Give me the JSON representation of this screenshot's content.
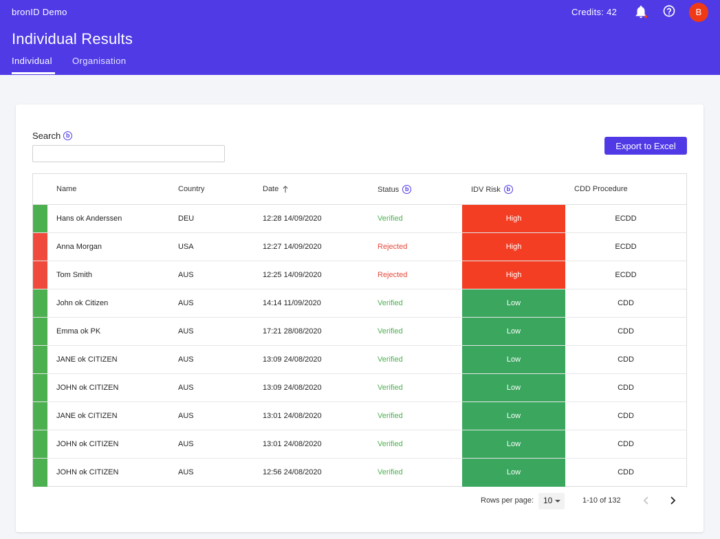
{
  "app": {
    "title": "bronID Demo",
    "credits": "Credits: 42",
    "avatar_initial": "B"
  },
  "header": {
    "page_title": "Individual Results",
    "tabs": [
      {
        "label": "Individual",
        "active": true
      },
      {
        "label": "Organisation",
        "active": false
      }
    ]
  },
  "search": {
    "label": "Search",
    "value": "",
    "placeholder": ""
  },
  "export_label": "Export to Excel",
  "table": {
    "columns": [
      "Name",
      "Country",
      "Date",
      "Status",
      "IDV Risk",
      "CDD Procedure"
    ],
    "rows": [
      {
        "name": "Hans ok Anderssen",
        "country": "DEU",
        "date": "12:28 14/09/2020",
        "status": "Verified",
        "risk": "High",
        "cdd": "ECDD",
        "indicator": "#4caf50"
      },
      {
        "name": "Anna Morgan",
        "country": "USA",
        "date": "12:27 14/09/2020",
        "status": "Rejected",
        "risk": "High",
        "cdd": "ECDD",
        "indicator": "#ef4a3c"
      },
      {
        "name": "Tom Smith",
        "country": "AUS",
        "date": "12:25 14/09/2020",
        "status": "Rejected",
        "risk": "High",
        "cdd": "ECDD",
        "indicator": "#ef4a3c"
      },
      {
        "name": "John ok Citizen",
        "country": "AUS",
        "date": "14:14 11/09/2020",
        "status": "Verified",
        "risk": "Low",
        "cdd": "CDD",
        "indicator": "#4caf50"
      },
      {
        "name": "Emma ok PK",
        "country": "AUS",
        "date": "17:21 28/08/2020",
        "status": "Verified",
        "risk": "Low",
        "cdd": "CDD",
        "indicator": "#4caf50"
      },
      {
        "name": "JANE ok CITIZEN",
        "country": "AUS",
        "date": "13:09 24/08/2020",
        "status": "Verified",
        "risk": "Low",
        "cdd": "CDD",
        "indicator": "#4caf50"
      },
      {
        "name": "JOHN ok CITIZEN",
        "country": "AUS",
        "date": "13:09 24/08/2020",
        "status": "Verified",
        "risk": "Low",
        "cdd": "CDD",
        "indicator": "#4caf50"
      },
      {
        "name": "JANE ok CITIZEN",
        "country": "AUS",
        "date": "13:01 24/08/2020",
        "status": "Verified",
        "risk": "Low",
        "cdd": "CDD",
        "indicator": "#4caf50"
      },
      {
        "name": "JOHN ok CITIZEN",
        "country": "AUS",
        "date": "13:01 24/08/2020",
        "status": "Verified",
        "risk": "Low",
        "cdd": "CDD",
        "indicator": "#4caf50"
      },
      {
        "name": "JOHN ok CITIZEN",
        "country": "AUS",
        "date": "12:56 24/08/2020",
        "status": "Verified",
        "risk": "Low",
        "cdd": "CDD",
        "indicator": "#4caf50"
      }
    ]
  },
  "pagination": {
    "rows_per_page_label": "Rows per page:",
    "rows_per_page": "10",
    "range": "1-10 of 132"
  },
  "colors": {
    "brand": "#4f3ae6",
    "risk_high": "#f33e24",
    "risk_low": "#3aa65e",
    "verified": "#4caf50",
    "rejected": "#e64a3b"
  }
}
